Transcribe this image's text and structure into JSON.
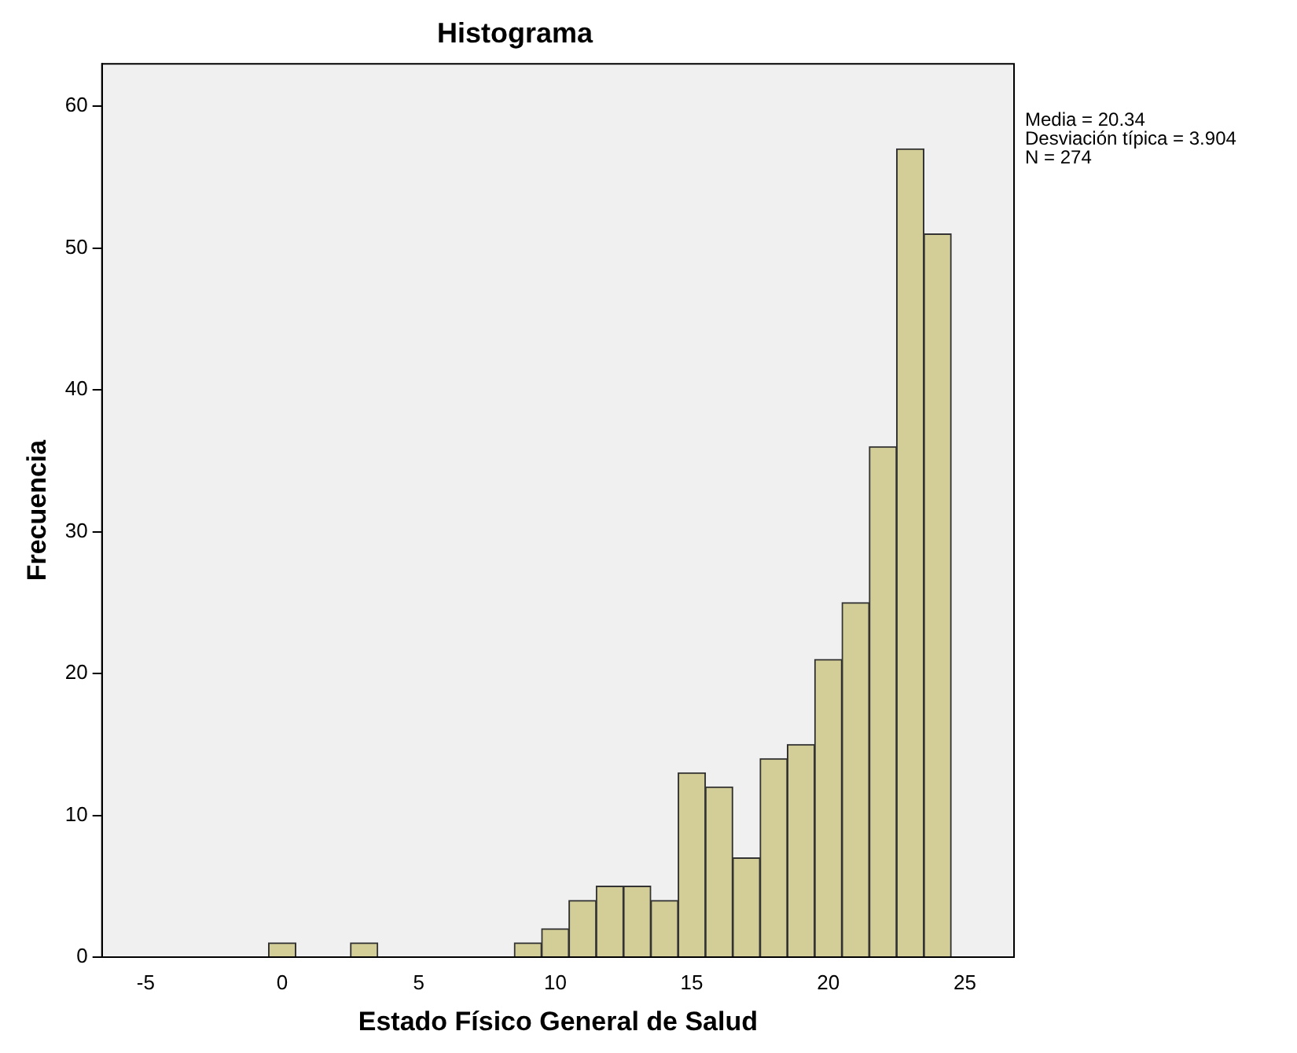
{
  "chart_data": {
    "type": "histogram",
    "title": "Histograma",
    "xlabel": "Estado Físico General de Salud",
    "ylabel": "Frecuencia",
    "bins": [
      -0.5,
      0.5,
      1.5,
      2.5,
      3.5,
      4.5,
      5.5,
      6.5,
      7.5,
      8.5,
      9.5,
      10.5,
      11.5,
      12.5,
      13.5,
      14.5,
      15.5,
      16.5,
      17.5,
      18.5,
      19.5,
      20.5,
      21.5,
      22.5,
      23.5,
      24.5
    ],
    "values": [
      1,
      0,
      0,
      1,
      0,
      0,
      0,
      0,
      0,
      1,
      2,
      4,
      5,
      5,
      4,
      13,
      12,
      7,
      14,
      15,
      21,
      25,
      36,
      57,
      51
    ],
    "color": "#d3ce97",
    "xlim": [
      -6.6,
      26.8
    ],
    "xticks": [
      -5,
      0,
      5,
      10,
      15,
      20,
      25
    ],
    "ylim": [
      0,
      63
    ],
    "yticks": [
      0,
      10,
      20,
      30,
      40,
      50,
      60
    ],
    "grid": false,
    "legend": false,
    "annotations": [
      "Media = 20.34",
      "Desviación típica = 3.904",
      "N = 274"
    ]
  }
}
